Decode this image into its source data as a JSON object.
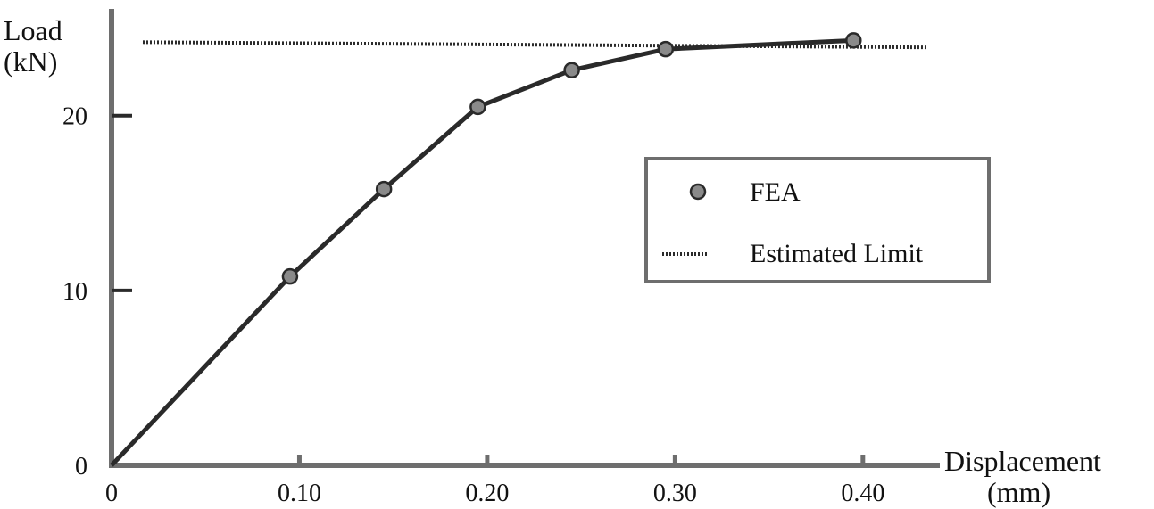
{
  "chart_data": {
    "type": "line",
    "title": "",
    "xlabel": [
      "Displacement",
      "(mm)"
    ],
    "ylabel": [
      "Load",
      "(kN)"
    ],
    "xlim": [
      0,
      0.44
    ],
    "ylim": [
      0,
      26
    ],
    "x_ticks": [
      {
        "value": 0,
        "label": "0"
      },
      {
        "value": 0.1,
        "label": "0.10"
      },
      {
        "value": 0.2,
        "label": "0.20"
      },
      {
        "value": 0.3,
        "label": "0.30"
      },
      {
        "value": 0.4,
        "label": "0.40"
      }
    ],
    "y_ticks": [
      {
        "value": 0,
        "label": "0"
      },
      {
        "value": 10,
        "label": "10"
      },
      {
        "value": 20,
        "label": "20"
      }
    ],
    "grid": false,
    "legend_position": "right",
    "series": [
      {
        "name": "FEA",
        "style": "line-with-markers",
        "x": [
          0,
          0.095,
          0.145,
          0.195,
          0.245,
          0.295,
          0.395
        ],
        "y": [
          0,
          10.8,
          15.8,
          20.5,
          22.6,
          23.8,
          24.3
        ]
      },
      {
        "name": "Estimated Limit",
        "style": "dotted",
        "x": [
          0,
          0.44
        ],
        "y": [
          24.2,
          23.9
        ]
      }
    ],
    "colors": {
      "line": "#2a2a2a",
      "marker": "#8a8a8a",
      "axis": "#6e6e6e"
    }
  }
}
